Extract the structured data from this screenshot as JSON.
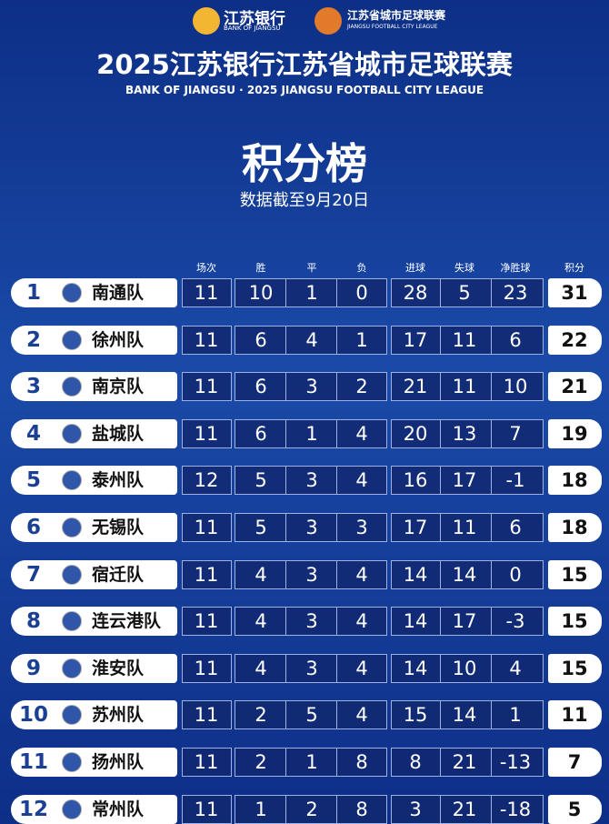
{
  "header": {
    "sponsor_name": "江苏银行",
    "sponsor_en": "BANK OF JIANGSU",
    "league_name": "江苏省城市足球联赛",
    "league_en": "JIANGSU FOOTBALL CITY LEAGUE",
    "title": "2025江苏银行江苏省城市足球联赛",
    "subtitle": "BANK OF JIANGSU · 2025 JIANGSU FOOTBALL CITY LEAGUE",
    "heading": "积分榜",
    "date_note": "数据截至9月20日"
  },
  "table": {
    "columns": [
      "场次",
      "胜",
      "平",
      "负",
      "进球",
      "失球",
      "净胜球",
      "积分"
    ],
    "rows": [
      [
        1,
        "南通队",
        11,
        10,
        1,
        0,
        28,
        5,
        23,
        31
      ],
      [
        2,
        "徐州队",
        11,
        6,
        4,
        1,
        17,
        11,
        6,
        22
      ],
      [
        3,
        "南京队",
        11,
        6,
        3,
        2,
        21,
        11,
        10,
        21
      ],
      [
        4,
        "盐城队",
        11,
        6,
        1,
        4,
        20,
        13,
        7,
        19
      ],
      [
        5,
        "泰州队",
        12,
        5,
        3,
        4,
        16,
        17,
        -1,
        18
      ],
      [
        6,
        "无锡队",
        11,
        5,
        3,
        3,
        17,
        11,
        6,
        18
      ],
      [
        7,
        "宿迁队",
        11,
        4,
        3,
        4,
        14,
        14,
        0,
        15
      ],
      [
        8,
        "连云港队",
        11,
        4,
        3,
        4,
        14,
        17,
        -3,
        15
      ],
      [
        9,
        "淮安队",
        11,
        4,
        3,
        4,
        14,
        10,
        4,
        15
      ],
      [
        10,
        "苏州队",
        11,
        2,
        5,
        4,
        15,
        14,
        1,
        11
      ],
      [
        11,
        "扬州队",
        11,
        2,
        1,
        8,
        8,
        21,
        -13,
        7
      ],
      [
        12,
        "常州队",
        11,
        1,
        2,
        8,
        3,
        21,
        -18,
        5
      ]
    ]
  }
}
